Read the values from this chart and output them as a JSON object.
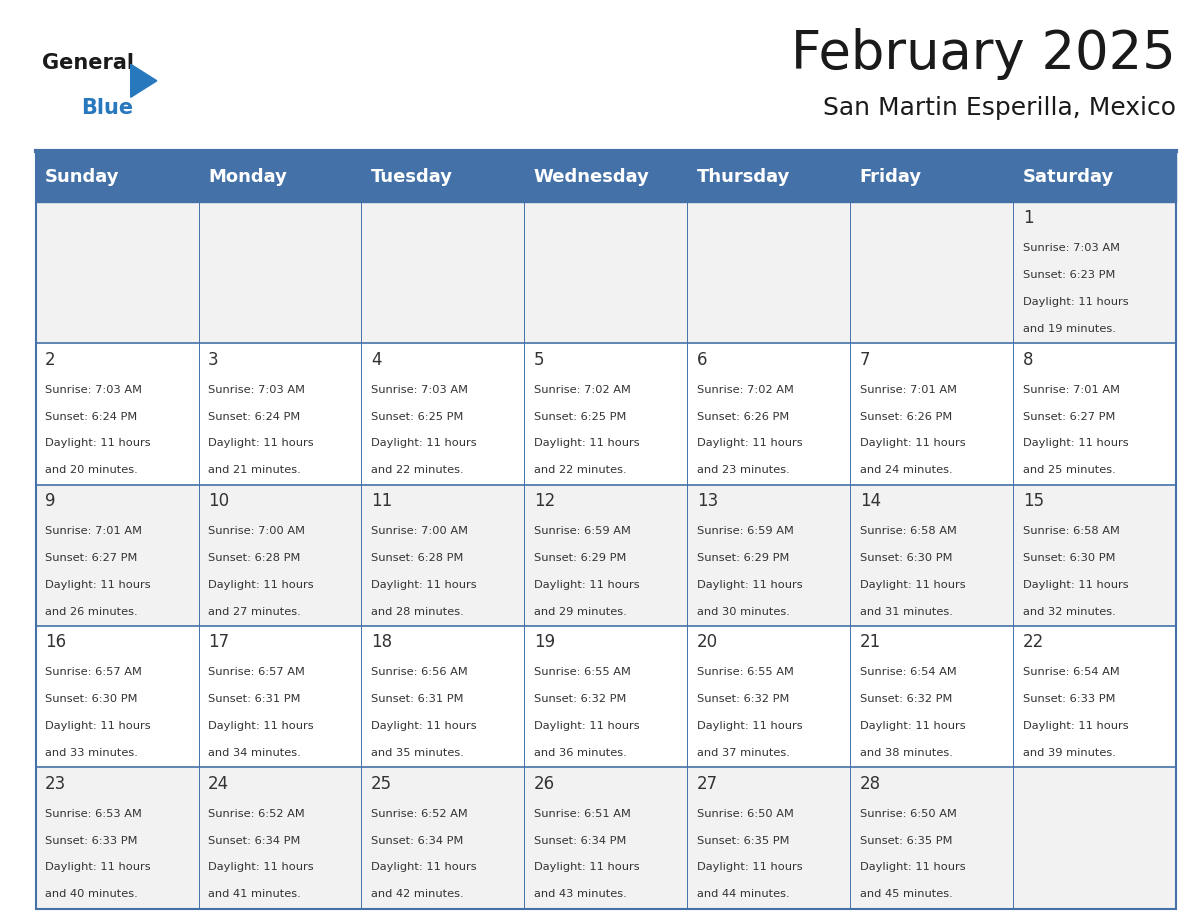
{
  "title": "February 2025",
  "subtitle": "San Martin Esperilla, Mexico",
  "header_bg": "#4472A8",
  "header_text": "#FFFFFF",
  "weekdays": [
    "Sunday",
    "Monday",
    "Tuesday",
    "Wednesday",
    "Thursday",
    "Friday",
    "Saturday"
  ],
  "row_bg_even": "#F2F2F2",
  "row_bg_odd": "#FFFFFF",
  "cell_border": "#4472A8",
  "day_num_color": "#333333",
  "info_color": "#333333",
  "logo_general_color": "#1a1a1a",
  "logo_blue_color": "#2878BE",
  "calendar": [
    [
      null,
      null,
      null,
      null,
      null,
      null,
      {
        "day": 1,
        "sunrise": "7:03 AM",
        "sunset": "6:23 PM",
        "daylight": "11 hours and 19 minutes."
      }
    ],
    [
      {
        "day": 2,
        "sunrise": "7:03 AM",
        "sunset": "6:24 PM",
        "daylight": "11 hours and 20 minutes."
      },
      {
        "day": 3,
        "sunrise": "7:03 AM",
        "sunset": "6:24 PM",
        "daylight": "11 hours and 21 minutes."
      },
      {
        "day": 4,
        "sunrise": "7:03 AM",
        "sunset": "6:25 PM",
        "daylight": "11 hours and 22 minutes."
      },
      {
        "day": 5,
        "sunrise": "7:02 AM",
        "sunset": "6:25 PM",
        "daylight": "11 hours and 22 minutes."
      },
      {
        "day": 6,
        "sunrise": "7:02 AM",
        "sunset": "6:26 PM",
        "daylight": "11 hours and 23 minutes."
      },
      {
        "day": 7,
        "sunrise": "7:01 AM",
        "sunset": "6:26 PM",
        "daylight": "11 hours and 24 minutes."
      },
      {
        "day": 8,
        "sunrise": "7:01 AM",
        "sunset": "6:27 PM",
        "daylight": "11 hours and 25 minutes."
      }
    ],
    [
      {
        "day": 9,
        "sunrise": "7:01 AM",
        "sunset": "6:27 PM",
        "daylight": "11 hours and 26 minutes."
      },
      {
        "day": 10,
        "sunrise": "7:00 AM",
        "sunset": "6:28 PM",
        "daylight": "11 hours and 27 minutes."
      },
      {
        "day": 11,
        "sunrise": "7:00 AM",
        "sunset": "6:28 PM",
        "daylight": "11 hours and 28 minutes."
      },
      {
        "day": 12,
        "sunrise": "6:59 AM",
        "sunset": "6:29 PM",
        "daylight": "11 hours and 29 minutes."
      },
      {
        "day": 13,
        "sunrise": "6:59 AM",
        "sunset": "6:29 PM",
        "daylight": "11 hours and 30 minutes."
      },
      {
        "day": 14,
        "sunrise": "6:58 AM",
        "sunset": "6:30 PM",
        "daylight": "11 hours and 31 minutes."
      },
      {
        "day": 15,
        "sunrise": "6:58 AM",
        "sunset": "6:30 PM",
        "daylight": "11 hours and 32 minutes."
      }
    ],
    [
      {
        "day": 16,
        "sunrise": "6:57 AM",
        "sunset": "6:30 PM",
        "daylight": "11 hours and 33 minutes."
      },
      {
        "day": 17,
        "sunrise": "6:57 AM",
        "sunset": "6:31 PM",
        "daylight": "11 hours and 34 minutes."
      },
      {
        "day": 18,
        "sunrise": "6:56 AM",
        "sunset": "6:31 PM",
        "daylight": "11 hours and 35 minutes."
      },
      {
        "day": 19,
        "sunrise": "6:55 AM",
        "sunset": "6:32 PM",
        "daylight": "11 hours and 36 minutes."
      },
      {
        "day": 20,
        "sunrise": "6:55 AM",
        "sunset": "6:32 PM",
        "daylight": "11 hours and 37 minutes."
      },
      {
        "day": 21,
        "sunrise": "6:54 AM",
        "sunset": "6:32 PM",
        "daylight": "11 hours and 38 minutes."
      },
      {
        "day": 22,
        "sunrise": "6:54 AM",
        "sunset": "6:33 PM",
        "daylight": "11 hours and 39 minutes."
      }
    ],
    [
      {
        "day": 23,
        "sunrise": "6:53 AM",
        "sunset": "6:33 PM",
        "daylight": "11 hours and 40 minutes."
      },
      {
        "day": 24,
        "sunrise": "6:52 AM",
        "sunset": "6:34 PM",
        "daylight": "11 hours and 41 minutes."
      },
      {
        "day": 25,
        "sunrise": "6:52 AM",
        "sunset": "6:34 PM",
        "daylight": "11 hours and 42 minutes."
      },
      {
        "day": 26,
        "sunrise": "6:51 AM",
        "sunset": "6:34 PM",
        "daylight": "11 hours and 43 minutes."
      },
      {
        "day": 27,
        "sunrise": "6:50 AM",
        "sunset": "6:35 PM",
        "daylight": "11 hours and 44 minutes."
      },
      {
        "day": 28,
        "sunrise": "6:50 AM",
        "sunset": "6:35 PM",
        "daylight": "11 hours and 45 minutes."
      },
      null
    ]
  ]
}
